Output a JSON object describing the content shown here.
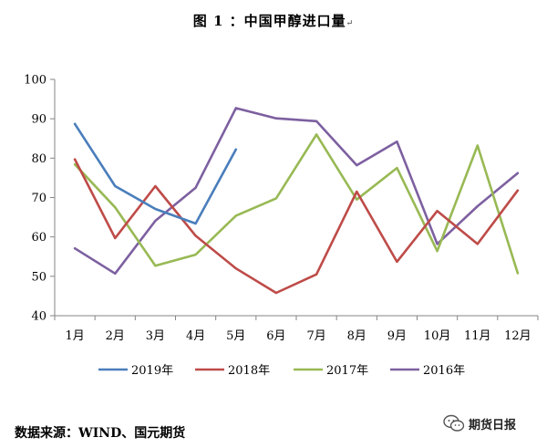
{
  "title": "图 1 ：中国甲醇进口量",
  "title_mark": "↵",
  "source_note": "数据来源：WIND、国元期货",
  "watermark": "期货日报",
  "chart_data": {
    "type": "line",
    "categories": [
      "1月",
      "2月",
      "3月",
      "4月",
      "5月",
      "6月",
      "7月",
      "8月",
      "9月",
      "10月",
      "11月",
      "12月"
    ],
    "ylim": [
      40,
      100
    ],
    "yticks": [
      40,
      50,
      60,
      70,
      80,
      90,
      100
    ],
    "grid": false,
    "legend_position": "bottom",
    "series": [
      {
        "name": "2019年",
        "color": "#4a7ebb",
        "values": [
          88.7,
          72.9,
          67.1,
          63.4,
          82.2,
          null,
          null,
          null,
          null,
          null,
          null,
          null
        ]
      },
      {
        "name": "2018年",
        "color": "#be4b48",
        "values": [
          79.7,
          59.7,
          72.9,
          60.3,
          52.0,
          45.8,
          50.5,
          71.5,
          53.7,
          66.6,
          58.2,
          71.8
        ]
      },
      {
        "name": "2017年",
        "color": "#98b954",
        "values": [
          78.4,
          67.5,
          52.7,
          55.5,
          65.4,
          69.8,
          86.0,
          69.5,
          77.5,
          56.4,
          83.2,
          50.8
        ]
      },
      {
        "name": "2016年",
        "color": "#7d60a0",
        "values": [
          57.1,
          50.7,
          64.1,
          72.5,
          92.7,
          90.1,
          89.4,
          78.2,
          84.2,
          58.2,
          67.8,
          76.2
        ]
      }
    ]
  }
}
